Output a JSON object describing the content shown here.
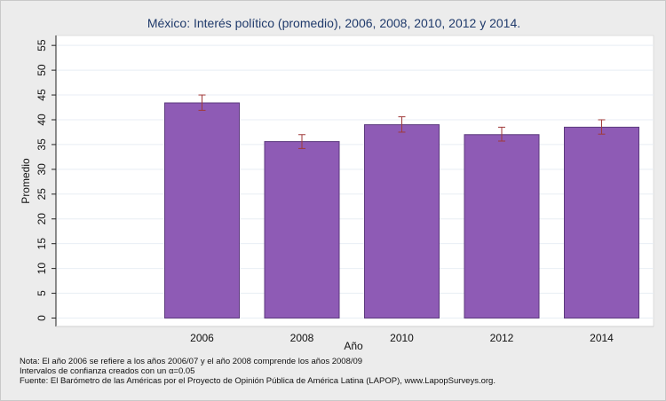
{
  "chart_data": {
    "type": "bar",
    "title": "México: Interés político (promedio), 2006, 2008, 2010, 2012 y 2014.",
    "xlabel": "Año",
    "ylabel": "Promedio",
    "categories": [
      "2006",
      "2008",
      "2010",
      "2012",
      "2014"
    ],
    "values": [
      43.4,
      35.6,
      39.0,
      37.0,
      38.5
    ],
    "ci_lower": [
      41.9,
      34.2,
      37.5,
      35.7,
      37.1
    ],
    "ci_upper": [
      45.0,
      37.0,
      40.6,
      38.5,
      40.0
    ],
    "ylim": [
      0,
      57
    ],
    "yticks": [
      "0",
      "5",
      "10",
      "15",
      "20",
      "25",
      "30",
      "35",
      "40",
      "45",
      "50",
      "55"
    ],
    "grid": true,
    "bar_color": "#8e5bb5",
    "bar_edge_color": "#5c3a7e",
    "errorbar_color": "#a03a3a"
  },
  "notes": {
    "line1": "Nota: El año 2006 se refiere a los años 2006/07 y el año 2008 comprende los años 2008/09",
    "line2": "Intervalos de confianza creados con un α=0.05",
    "line3": "Fuente: El Barómetro de las Américas por el Proyecto de Opinión Pública de América Latina (LAPOP), www.LapopSurveys.org."
  }
}
